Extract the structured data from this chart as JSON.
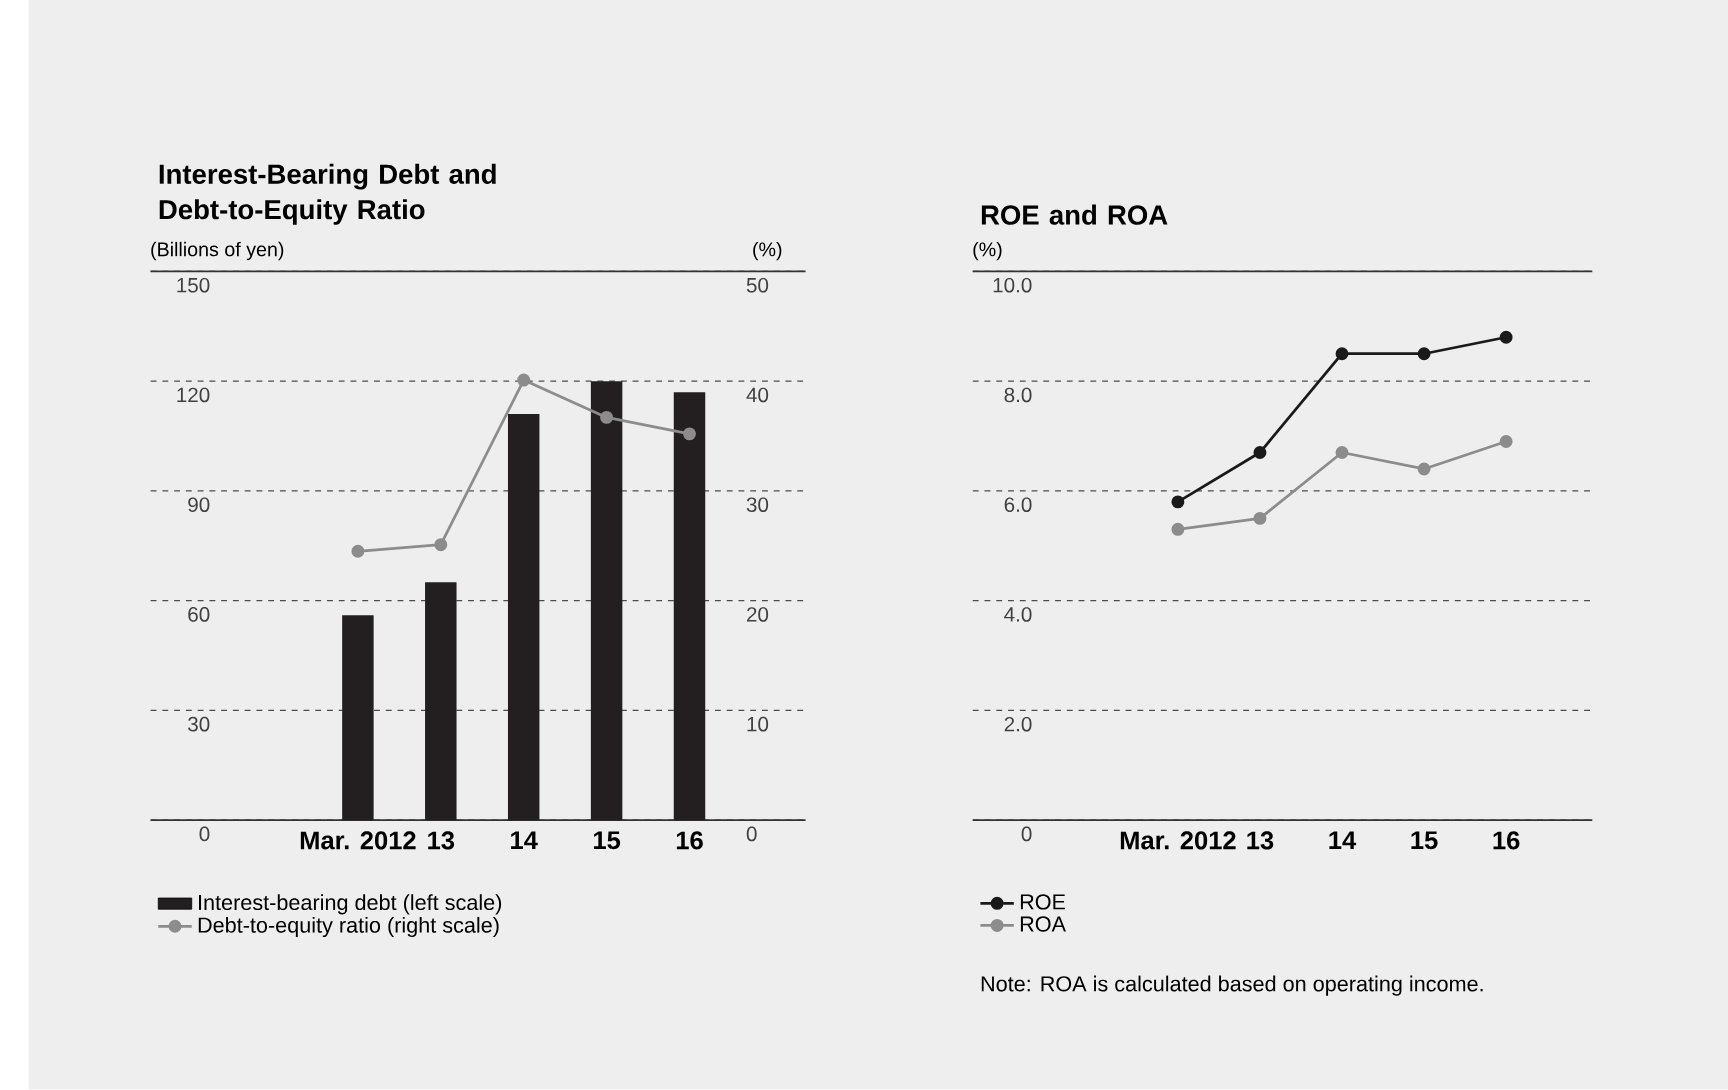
{
  "chart_data": [
    {
      "type": "bar",
      "title": "Interest-Bearing Debt and Debt-to-Equity Ratio",
      "ylabel": "(Billions of yen)",
      "y2label": "(%)",
      "categories": [
        "Mar. 2012",
        "13",
        "14",
        "15",
        "16"
      ],
      "series": [
        {
          "name": "Interest-bearing debt (left scale)",
          "type": "bar",
          "color": "#231f20",
          "values": [
            56,
            65,
            111,
            120,
            117
          ]
        },
        {
          "name": "Debt-to-equity ratio (right scale)",
          "type": "line",
          "axis": "y2",
          "color": "#8c8c8c",
          "values": [
            24.5,
            25.1,
            40.1,
            36.7,
            35.2
          ]
        }
      ],
      "ylim": [
        0,
        150
      ],
      "yticks": [
        0,
        30,
        60,
        90,
        120,
        150
      ],
      "y2lim": [
        0,
        50
      ],
      "y2ticks": [
        0,
        10,
        20,
        30,
        40,
        50
      ],
      "grid": "y",
      "legend": "bottom left",
      "marker": "circle"
    },
    {
      "type": "line",
      "title": "ROE and ROA",
      "ylabel": "(%)",
      "categories": [
        "Mar. 2012",
        "13",
        "14",
        "15",
        "16"
      ],
      "series": [
        {
          "name": "ROE",
          "color": "#1a1a1a",
          "values": [
            5.8,
            6.7,
            8.5,
            8.5,
            8.8
          ]
        },
        {
          "name": "ROA",
          "color": "#8c8c8c",
          "values": [
            5.3,
            5.5,
            6.7,
            6.4,
            6.9
          ]
        }
      ],
      "ylim": [
        0,
        10
      ],
      "yticks": [
        0,
        {
          "value": 2,
          "label": "2.0"
        },
        {
          "value": 4,
          "label": "4.0"
        },
        {
          "value": 6,
          "label": "6.0"
        },
        {
          "value": 8,
          "label": "8.0"
        },
        {
          "value": 10,
          "label": "10.0"
        }
      ],
      "grid": "y",
      "legend": "bottom left",
      "marker": "circle",
      "annotations": [
        "Note: ROA is calculated based on operating income."
      ]
    }
  ]
}
